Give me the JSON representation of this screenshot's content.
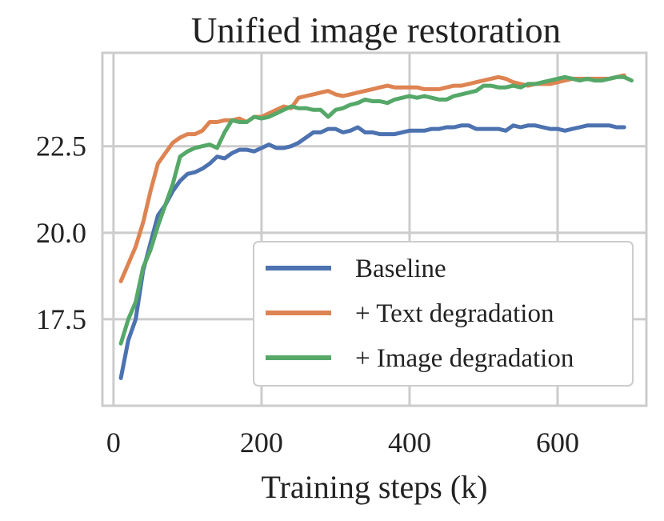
{
  "chart_data": {
    "type": "line",
    "title": "Unified image restoration",
    "xlabel": "Training steps (k)",
    "ylabel": "",
    "xlim": [
      -15,
      720
    ],
    "ylim": [
      15.0,
      25.2
    ],
    "xticks": [
      0,
      200,
      400,
      600
    ],
    "xtick_labels": [
      "0",
      "200",
      "400",
      "600"
    ],
    "yticks": [
      17.5,
      20.0,
      22.5
    ],
    "ytick_labels": [
      "17.5",
      "20.0",
      "22.5"
    ],
    "grid": true,
    "legend_position": "lower-right",
    "x": [
      10,
      20,
      30,
      40,
      50,
      60,
      70,
      80,
      90,
      100,
      110,
      120,
      130,
      140,
      150,
      160,
      170,
      180,
      190,
      200,
      210,
      220,
      230,
      240,
      250,
      260,
      270,
      280,
      290,
      300,
      310,
      320,
      330,
      340,
      350,
      360,
      370,
      380,
      390,
      400,
      410,
      420,
      430,
      440,
      450,
      460,
      470,
      480,
      490,
      500,
      510,
      520,
      530,
      540,
      550,
      560,
      570,
      580,
      590,
      600,
      610,
      620,
      630,
      640,
      650,
      660,
      670,
      680,
      690,
      700
    ],
    "series": [
      {
        "name": "Baseline",
        "color": "#4c72b0",
        "values": [
          15.8,
          16.9,
          17.5,
          18.9,
          19.7,
          20.5,
          20.8,
          21.2,
          21.5,
          21.7,
          21.75,
          21.85,
          22.0,
          22.2,
          22.15,
          22.3,
          22.4,
          22.4,
          22.35,
          22.45,
          22.55,
          22.45,
          22.45,
          22.5,
          22.6,
          22.75,
          22.9,
          22.9,
          23.0,
          23.0,
          22.9,
          22.95,
          23.05,
          22.9,
          22.9,
          22.85,
          22.85,
          22.85,
          22.9,
          22.95,
          22.95,
          22.95,
          23.0,
          23.0,
          23.05,
          23.05,
          23.1,
          23.1,
          23.0,
          23.0,
          23.0,
          23.0,
          22.95,
          23.1,
          23.05,
          23.1,
          23.1,
          23.05,
          23.0,
          23.0,
          22.95,
          23.0,
          23.05,
          23.1,
          23.1,
          23.1,
          23.1,
          23.05,
          23.05,
          null
        ]
      },
      {
        "name": "+ Text degradation",
        "color": "#dd8452",
        "values": [
          18.6,
          19.1,
          19.6,
          20.3,
          21.2,
          22.0,
          22.3,
          22.6,
          22.75,
          22.85,
          22.85,
          22.95,
          23.2,
          23.2,
          23.25,
          23.25,
          23.3,
          23.2,
          23.35,
          23.35,
          23.45,
          23.55,
          23.65,
          23.6,
          23.9,
          23.95,
          24.0,
          24.05,
          24.1,
          24.0,
          23.95,
          24.0,
          24.05,
          24.1,
          24.15,
          24.2,
          24.25,
          24.2,
          24.2,
          24.2,
          24.2,
          24.15,
          24.15,
          24.15,
          24.2,
          24.25,
          24.25,
          24.3,
          24.35,
          24.4,
          24.45,
          24.5,
          24.45,
          24.35,
          24.3,
          24.25,
          24.3,
          24.3,
          24.3,
          24.35,
          24.4,
          24.45,
          24.45,
          24.45,
          24.45,
          24.45,
          24.45,
          24.5,
          24.55,
          null
        ]
      },
      {
        "name": "+ Image degradation",
        "color": "#55a868",
        "values": [
          16.8,
          17.5,
          18.0,
          19.0,
          19.5,
          20.2,
          20.8,
          21.4,
          22.2,
          22.35,
          22.45,
          22.5,
          22.55,
          22.45,
          22.9,
          23.25,
          23.2,
          23.2,
          23.35,
          23.3,
          23.35,
          23.45,
          23.55,
          23.65,
          23.6,
          23.6,
          23.55,
          23.55,
          23.35,
          23.55,
          23.6,
          23.7,
          23.75,
          23.85,
          23.8,
          23.8,
          23.75,
          23.85,
          23.9,
          23.95,
          23.9,
          23.95,
          23.9,
          23.85,
          23.85,
          23.95,
          24.0,
          24.05,
          24.1,
          24.25,
          24.25,
          24.2,
          24.2,
          24.25,
          24.2,
          24.3,
          24.3,
          24.35,
          24.4,
          24.45,
          24.5,
          24.45,
          24.4,
          24.45,
          24.4,
          24.4,
          24.45,
          24.5,
          24.5,
          24.4
        ]
      }
    ]
  }
}
